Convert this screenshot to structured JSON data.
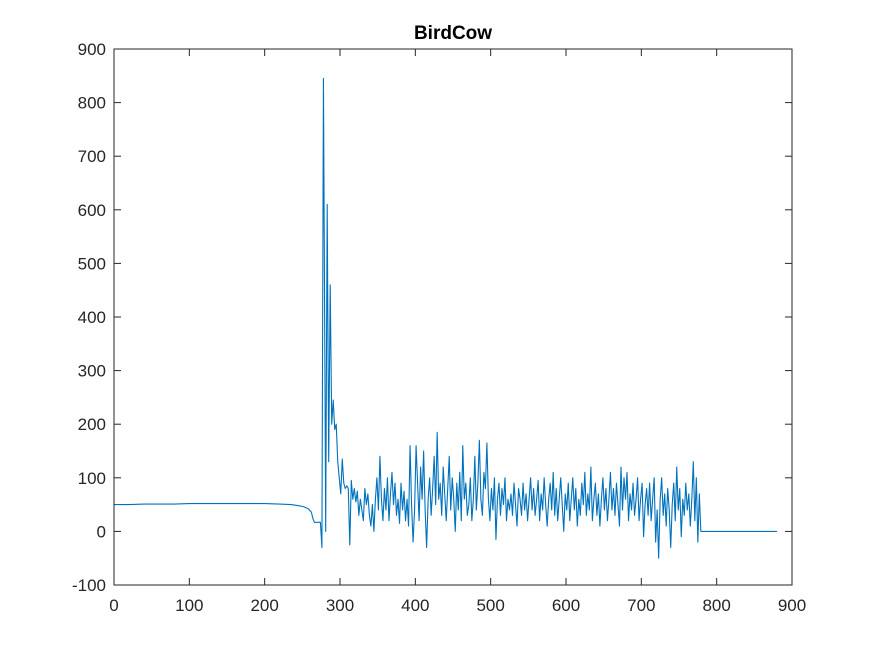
{
  "chart_data": {
    "type": "line",
    "title": "BirdCow",
    "xlabel": "",
    "ylabel": "",
    "xlim": [
      0,
      900
    ],
    "ylim": [
      -100,
      900
    ],
    "x_ticks": [
      0,
      100,
      200,
      300,
      400,
      500,
      600,
      700,
      800,
      900
    ],
    "y_ticks": [
      -100,
      0,
      100,
      200,
      300,
      400,
      500,
      600,
      700,
      800,
      900
    ],
    "grid": false,
    "legend": "none",
    "series": [
      {
        "color": "#0072bd",
        "points": [
          [
            0,
            50
          ],
          [
            20,
            50
          ],
          [
            40,
            51
          ],
          [
            60,
            51
          ],
          [
            80,
            51
          ],
          [
            100,
            52
          ],
          [
            120,
            52
          ],
          [
            140,
            52
          ],
          [
            160,
            52
          ],
          [
            180,
            52
          ],
          [
            200,
            52
          ],
          [
            220,
            51
          ],
          [
            235,
            50
          ],
          [
            245,
            48
          ],
          [
            252,
            46
          ],
          [
            258,
            42
          ],
          [
            262,
            36
          ],
          [
            264,
            24
          ],
          [
            266,
            17
          ],
          [
            270,
            17
          ],
          [
            274,
            17
          ],
          [
            276,
            -30
          ],
          [
            278,
            845
          ],
          [
            280,
            300
          ],
          [
            281,
            0
          ],
          [
            283,
            610
          ],
          [
            285,
            130
          ],
          [
            287,
            460
          ],
          [
            289,
            200
          ],
          [
            291,
            245
          ],
          [
            293,
            190
          ],
          [
            295,
            200
          ],
          [
            297,
            130
          ],
          [
            299,
            100
          ],
          [
            301,
            70
          ],
          [
            303,
            135
          ],
          [
            305,
            90
          ],
          [
            307,
            80
          ],
          [
            309,
            85
          ],
          [
            311,
            80
          ],
          [
            313,
            -25
          ],
          [
            315,
            95
          ],
          [
            317,
            60
          ],
          [
            319,
            80
          ],
          [
            321,
            55
          ],
          [
            323,
            75
          ],
          [
            325,
            30
          ],
          [
            327,
            60
          ],
          [
            329,
            40
          ],
          [
            331,
            20
          ],
          [
            333,
            80
          ],
          [
            335,
            50
          ],
          [
            337,
            70
          ],
          [
            339,
            30
          ],
          [
            341,
            10
          ],
          [
            343,
            50
          ],
          [
            345,
            0
          ],
          [
            347,
            60
          ],
          [
            349,
            100
          ],
          [
            351,
            40
          ],
          [
            353,
            140
          ],
          [
            355,
            60
          ],
          [
            357,
            20
          ],
          [
            359,
            80
          ],
          [
            361,
            40
          ],
          [
            363,
            100
          ],
          [
            365,
            20
          ],
          [
            367,
            70
          ],
          [
            369,
            110
          ],
          [
            371,
            50
          ],
          [
            373,
            90
          ],
          [
            375,
            30
          ],
          [
            377,
            60
          ],
          [
            379,
            15
          ],
          [
            381,
            90
          ],
          [
            383,
            40
          ],
          [
            385,
            75
          ],
          [
            387,
            20
          ],
          [
            389,
            60
          ],
          [
            391,
            10
          ],
          [
            393,
            160
          ],
          [
            395,
            50
          ],
          [
            397,
            -20
          ],
          [
            399,
            40
          ],
          [
            401,
            160
          ],
          [
            403,
            90
          ],
          [
            405,
            20
          ],
          [
            407,
            120
          ],
          [
            409,
            60
          ],
          [
            411,
            150
          ],
          [
            413,
            40
          ],
          [
            415,
            -30
          ],
          [
            417,
            60
          ],
          [
            419,
            100
          ],
          [
            421,
            30
          ],
          [
            423,
            80
          ],
          [
            425,
            140
          ],
          [
            427,
            50
          ],
          [
            429,
            185
          ],
          [
            431,
            60
          ],
          [
            433,
            90
          ],
          [
            435,
            30
          ],
          [
            437,
            120
          ],
          [
            439,
            70
          ],
          [
            441,
            20
          ],
          [
            443,
            80
          ],
          [
            445,
            140
          ],
          [
            447,
            40
          ],
          [
            449,
            100
          ],
          [
            451,
            60
          ],
          [
            453,
            0
          ],
          [
            455,
            90
          ],
          [
            457,
            40
          ],
          [
            459,
            110
          ],
          [
            461,
            20
          ],
          [
            463,
            160
          ],
          [
            465,
            60
          ],
          [
            467,
            90
          ],
          [
            469,
            30
          ],
          [
            471,
            50
          ],
          [
            473,
            100
          ],
          [
            475,
            20
          ],
          [
            477,
            60
          ],
          [
            479,
            140
          ],
          [
            481,
            40
          ],
          [
            483,
            90
          ],
          [
            485,
            170
          ],
          [
            487,
            60
          ],
          [
            489,
            30
          ],
          [
            491,
            110
          ],
          [
            493,
            80
          ],
          [
            495,
            165
          ],
          [
            497,
            60
          ],
          [
            499,
            20
          ],
          [
            501,
            80
          ],
          [
            503,
            40
          ],
          [
            505,
            100
          ],
          [
            507,
            -15
          ],
          [
            509,
            60
          ],
          [
            511,
            90
          ],
          [
            513,
            30
          ],
          [
            515,
            80
          ],
          [
            517,
            50
          ],
          [
            519,
            100
          ],
          [
            521,
            20
          ],
          [
            523,
            60
          ],
          [
            525,
            40
          ],
          [
            527,
            70
          ],
          [
            529,
            30
          ],
          [
            531,
            90
          ],
          [
            533,
            50
          ],
          [
            535,
            10
          ],
          [
            537,
            80
          ],
          [
            539,
            60
          ],
          [
            541,
            30
          ],
          [
            543,
            90
          ],
          [
            545,
            40
          ],
          [
            547,
            70
          ],
          [
            549,
            20
          ],
          [
            551,
            60
          ],
          [
            553,
            100
          ],
          [
            555,
            40
          ],
          [
            557,
            80
          ],
          [
            559,
            30
          ],
          [
            561,
            60
          ],
          [
            563,
            95
          ],
          [
            565,
            20
          ],
          [
            567,
            70
          ],
          [
            569,
            40
          ],
          [
            571,
            100
          ],
          [
            573,
            50
          ],
          [
            575,
            10
          ],
          [
            577,
            60
          ],
          [
            579,
            90
          ],
          [
            581,
            40
          ],
          [
            583,
            110
          ],
          [
            585,
            30
          ],
          [
            587,
            80
          ],
          [
            589,
            20
          ],
          [
            591,
            60
          ],
          [
            593,
            100
          ],
          [
            595,
            50
          ],
          [
            597,
            0
          ],
          [
            599,
            70
          ],
          [
            601,
            40
          ],
          [
            603,
            90
          ],
          [
            605,
            20
          ],
          [
            607,
            60
          ],
          [
            609,
            100
          ],
          [
            611,
            40
          ],
          [
            613,
            80
          ],
          [
            615,
            10
          ],
          [
            617,
            60
          ],
          [
            619,
            30
          ],
          [
            621,
            90
          ],
          [
            623,
            50
          ],
          [
            625,
            110
          ],
          [
            627,
            30
          ],
          [
            629,
            70
          ],
          [
            631,
            40
          ],
          [
            633,
            120
          ],
          [
            635,
            20
          ],
          [
            637,
            60
          ],
          [
            639,
            90
          ],
          [
            641,
            30
          ],
          [
            643,
            70
          ],
          [
            645,
            10
          ],
          [
            647,
            60
          ],
          [
            649,
            100
          ],
          [
            651,
            40
          ],
          [
            653,
            80
          ],
          [
            655,
            20
          ],
          [
            657,
            60
          ],
          [
            659,
            110
          ],
          [
            661,
            40
          ],
          [
            663,
            80
          ],
          [
            665,
            30
          ],
          [
            667,
            90
          ],
          [
            669,
            50
          ],
          [
            671,
            10
          ],
          [
            673,
            120
          ],
          [
            675,
            40
          ],
          [
            677,
            100
          ],
          [
            679,
            60
          ],
          [
            681,
            110
          ],
          [
            683,
            20
          ],
          [
            685,
            70
          ],
          [
            687,
            40
          ],
          [
            689,
            90
          ],
          [
            691,
            30
          ],
          [
            693,
            60
          ],
          [
            695,
            100
          ],
          [
            697,
            20
          ],
          [
            699,
            60
          ],
          [
            701,
            90
          ],
          [
            703,
            -10
          ],
          [
            705,
            50
          ],
          [
            707,
            80
          ],
          [
            709,
            30
          ],
          [
            711,
            90
          ],
          [
            713,
            20
          ],
          [
            715,
            60
          ],
          [
            717,
            100
          ],
          [
            719,
            -20
          ],
          [
            721,
            40
          ],
          [
            723,
            -50
          ],
          [
            725,
            60
          ],
          [
            727,
            100
          ],
          [
            729,
            30
          ],
          [
            731,
            70
          ],
          [
            733,
            10
          ],
          [
            735,
            80
          ],
          [
            737,
            40
          ],
          [
            739,
            -30
          ],
          [
            741,
            50
          ],
          [
            743,
            90
          ],
          [
            745,
            20
          ],
          [
            747,
            120
          ],
          [
            749,
            40
          ],
          [
            751,
            80
          ],
          [
            753,
            -10
          ],
          [
            755,
            60
          ],
          [
            757,
            30
          ],
          [
            759,
            90
          ],
          [
            761,
            40
          ],
          [
            763,
            70
          ],
          [
            765,
            10
          ],
          [
            767,
            60
          ],
          [
            769,
            130
          ],
          [
            771,
            20
          ],
          [
            773,
            100
          ],
          [
            775,
            -20
          ],
          [
            777,
            70
          ],
          [
            779,
            0
          ],
          [
            781,
            0
          ],
          [
            800,
            0
          ],
          [
            820,
            0
          ],
          [
            840,
            0
          ],
          [
            860,
            0
          ],
          [
            880,
            0
          ]
        ]
      }
    ]
  }
}
